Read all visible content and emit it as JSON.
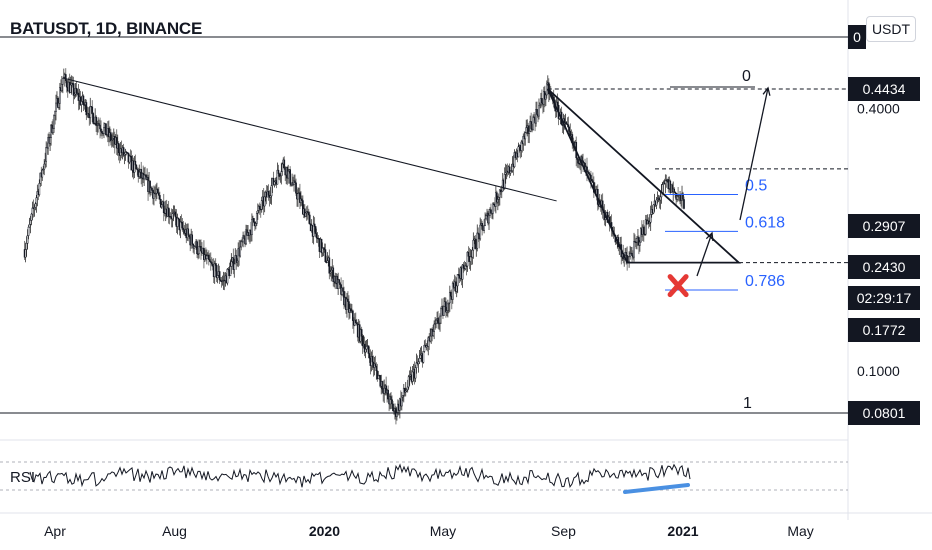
{
  "header": {
    "ticker": "BATUSDT, 1D, BINANCE",
    "currency_button": "USDT"
  },
  "chart_data": {
    "type": "candlestick",
    "symbol": "BATUSDT",
    "interval": "1D",
    "exchange": "BINANCE",
    "y_scale": "log",
    "x_tick_labels": [
      "Apr",
      "Aug",
      "2020",
      "May",
      "Sep",
      "2021",
      "May"
    ],
    "x_tick_dates": [
      "2019-04-01",
      "2019-08-01",
      "2020-01-01",
      "2020-05-01",
      "2020-09-01",
      "2021-01-01",
      "2021-05-01"
    ],
    "y_tick_labels": [
      "0.4000",
      "0.1000"
    ],
    "y_tick_values": [
      0.4,
      0.1
    ],
    "price_labels": [
      {
        "value": "0.4434",
        "style": "dark"
      },
      {
        "value": "0.2907",
        "style": "dark"
      },
      {
        "value": "0.2430",
        "style": "dark"
      },
      {
        "value": "02:29:17",
        "style": "dark"
      },
      {
        "value": "0.1772",
        "style": "dark"
      },
      {
        "value": "0.0801",
        "style": "dark"
      }
    ],
    "partially_visible_top_label": "0",
    "key_points": [
      {
        "date": "2019-03-01",
        "price": 0.19
      },
      {
        "date": "2019-04-09",
        "price": 0.47
      },
      {
        "date": "2019-07-15",
        "price": 0.25
      },
      {
        "date": "2019-09-20",
        "price": 0.16
      },
      {
        "date": "2019-11-20",
        "price": 0.3
      },
      {
        "date": "2020-03-13",
        "price": 0.0801
      },
      {
        "date": "2020-08-16",
        "price": 0.4434
      },
      {
        "date": "2020-11-05",
        "price": 0.1772
      },
      {
        "date": "2020-12-15",
        "price": 0.27
      },
      {
        "date": "2021-01-02",
        "price": 0.243
      }
    ],
    "fibonacci_levels": [
      {
        "label": "0",
        "price": 0.4434,
        "color": "#131722"
      },
      {
        "label": "0.5",
        "price": 0.265,
        "color": "#2962ff"
      },
      {
        "label": "0.618",
        "price": 0.218,
        "color": "#2962ff"
      },
      {
        "label": "0.786",
        "price": 0.16,
        "color": "#2962ff"
      },
      {
        "label": "1",
        "price": 0.0801,
        "color": "#131722"
      }
    ],
    "drawings": {
      "long_trendline": [
        [
          "2019-04-09",
          0.47
        ],
        [
          "2020-08-25",
          0.2455
        ]
      ],
      "triangle_apex": [
        [
          "2020-08-16",
          0.4434
        ],
        [
          "2021-02-27",
          0.1772
        ],
        [
          "2020-11-05",
          0.1772
        ]
      ],
      "resistance_level": 0.2907,
      "support_level": 0.1772,
      "cross_marker": {
        "date": "2020-12-27",
        "price": 0.157,
        "color": "#e53935"
      }
    },
    "rsi_panel": {
      "label": "RSI",
      "divergence_line_color": "#4a90e2"
    }
  }
}
